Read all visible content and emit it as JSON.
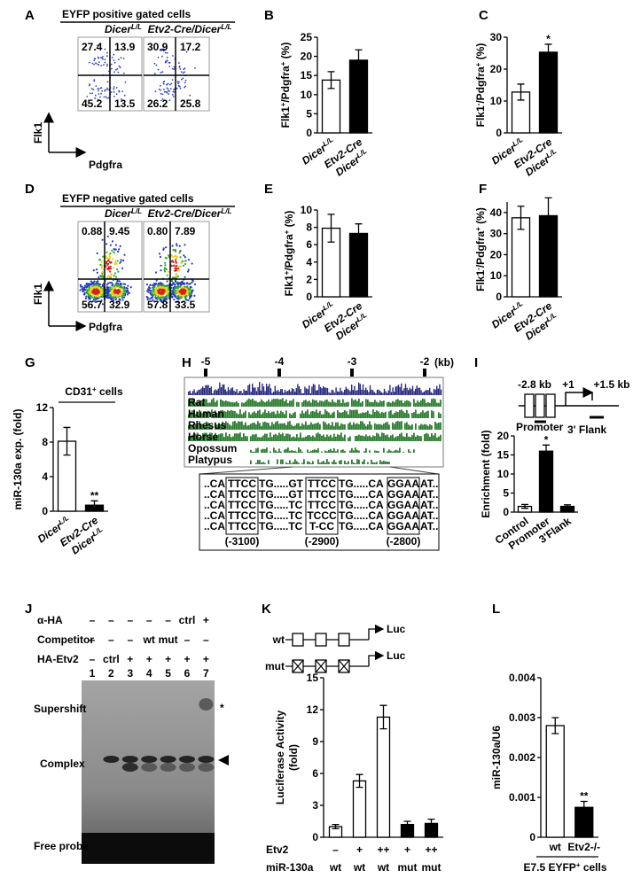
{
  "panel_a": {
    "label": "A",
    "title": "EYFP positive gated cells",
    "columns": [
      [
        "Dicer",
        "L/L"
      ],
      [
        "Etv2-Cre/Dicer",
        "L/L"
      ]
    ],
    "quadrants": [
      [
        "27.4",
        "13.9",
        "45.2",
        "13.5"
      ],
      [
        "30.9",
        "17.2",
        "26.2",
        "25.8"
      ]
    ],
    "y_axis": "Flk1",
    "x_axis": "Pdgfra"
  },
  "panel_d": {
    "label": "D",
    "title": "EYFP negative gated cells",
    "columns": [
      [
        "Dicer",
        "L/L"
      ],
      [
        "Etv2-Cre/Dicer",
        "L/L"
      ]
    ],
    "quadrants": [
      [
        "0.88",
        "9.45",
        "56.7",
        "32.9"
      ],
      [
        "0.80",
        "7.89",
        "57.8",
        "33.5"
      ]
    ],
    "y_axis": "Flk1",
    "x_axis": "Pdgfra"
  },
  "panel_h": {
    "label": "H",
    "scale": [
      "-5",
      "-4",
      "-3",
      "-2"
    ],
    "unit": "(kb)",
    "tracks": [
      "Rat",
      "Human",
      "Rhesus",
      "Horse",
      "Opossum",
      "Platypus"
    ],
    "sequences": [
      [
        "..CA",
        "TTCC",
        "TG.....GT",
        "TTCC",
        "TG.....CA",
        "GGAA",
        "AT.."
      ],
      [
        "..CA",
        "TTCC",
        "TG.....GT",
        "TTCC",
        "TG.....CA",
        "GGAA",
        "AT.."
      ],
      [
        "..CA",
        "TTCC",
        "TG.....TC",
        "TTCC",
        "TG.....CA",
        "GGAA",
        "AT.."
      ],
      [
        "..CA",
        "TTCC",
        "TG.....TC",
        "TCCC",
        "TG.....CA",
        "GGAA",
        "AT.."
      ],
      [
        "..CA",
        "TTCC",
        "TG.....TC",
        "T-CC",
        "TG.....CA",
        "GGAA",
        "AT.."
      ]
    ],
    "positions": [
      "(-3100)",
      "(-2900)",
      "(-2800)"
    ]
  },
  "panel_i": {
    "label": "I",
    "map_labels": [
      "-2.8 kb",
      "+1",
      "+1.5 kb"
    ],
    "regions": [
      "Promoter",
      "3' Flank"
    ]
  },
  "panel_j": {
    "label": "J",
    "rows": [
      {
        "name": "α-HA",
        "cells": [
          "–",
          "–",
          "–",
          "–",
          "–",
          "ctrl",
          "+"
        ]
      },
      {
        "name": "Competitor",
        "cells": [
          "–",
          "–",
          "–",
          "wt",
          "mut",
          "–",
          "–"
        ]
      },
      {
        "name": "HA-Etv2",
        "cells": [
          "–",
          "ctrl",
          "+",
          "+",
          "+",
          "+",
          "+"
        ]
      }
    ],
    "lanes": [
      "1",
      "2",
      "3",
      "4",
      "5",
      "6",
      "7"
    ],
    "bands": [
      "Supershift",
      "Complex",
      "Free probe"
    ],
    "supershift_mark": "*"
  },
  "panel_k": {
    "label": "K",
    "constructs": [
      "wt",
      "mut"
    ],
    "reporter": "Luc"
  },
  "chart_data": [
    {
      "type": "bar",
      "panel": "B",
      "ylabel": [
        [
          "Flk1",
          "+",
          "/Pdgfra",
          "+",
          " (%)"
        ]
      ],
      "categories": [
        [
          [
            "Dicer",
            "L/L"
          ]
        ],
        [
          [
            "Etv2-Cre"
          ],
          [
            "Dicer",
            "L/L"
          ]
        ]
      ],
      "values": [
        13.8,
        19
      ],
      "errors": [
        2.2,
        2.7
      ],
      "colors": [
        "#ffffff",
        "#000000"
      ],
      "ylim": [
        0,
        25
      ],
      "yticks": [
        0,
        5,
        10,
        15,
        20,
        25
      ],
      "rotated_labels": true,
      "italic_labels": true
    },
    {
      "type": "bar",
      "panel": "C",
      "ylabel": [
        [
          "Flk1",
          "-",
          "/Pdgfra",
          "+",
          " (%)"
        ]
      ],
      "categories": [
        [
          [
            "Dicer",
            "L/L"
          ]
        ],
        [
          [
            "Etv2-Cre"
          ],
          [
            "Dicer",
            "L/L"
          ]
        ]
      ],
      "values": [
        12.8,
        25.3
      ],
      "errors": [
        2.5,
        2.5
      ],
      "colors": [
        "#ffffff",
        "#000000"
      ],
      "ylim": [
        0,
        30
      ],
      "yticks": [
        0,
        10,
        20,
        30
      ],
      "significance": [
        null,
        "*"
      ],
      "rotated_labels": true,
      "italic_labels": true
    },
    {
      "type": "bar",
      "panel": "E",
      "ylabel": [
        [
          "Flk1",
          "+",
          "/Pdgfra",
          "+",
          " (%)"
        ]
      ],
      "categories": [
        [
          [
            "Dicer",
            "L/L"
          ]
        ],
        [
          [
            "Etv2-Cre"
          ],
          [
            "Dicer",
            "L/L"
          ]
        ]
      ],
      "values": [
        7.9,
        7.3
      ],
      "errors": [
        1.6,
        1.1
      ],
      "colors": [
        "#ffffff",
        "#000000"
      ],
      "ylim": [
        0,
        10
      ],
      "yticks": [
        0,
        2,
        4,
        6,
        8,
        10
      ],
      "rotated_labels": true,
      "italic_labels": true
    },
    {
      "type": "bar",
      "panel": "F",
      "ylabel": [
        [
          "Flk1",
          "-",
          "/Pdgfra",
          "+",
          " (%)"
        ]
      ],
      "categories": [
        [
          [
            "Dicer",
            "L/L"
          ]
        ],
        [
          [
            "Etv2-Cre"
          ],
          [
            "Dicer",
            "L/L"
          ]
        ]
      ],
      "values": [
        37.5,
        38.5
      ],
      "errors": [
        5.5,
        8.5
      ],
      "colors": [
        "#ffffff",
        "#000000"
      ],
      "ylim": [
        0,
        45
      ],
      "yticks": [
        0,
        10,
        20,
        30,
        40
      ],
      "rotated_labels": true,
      "italic_labels": true
    },
    {
      "type": "bar",
      "panel": "G",
      "subtitle": [
        "CD31",
        "+",
        " cells"
      ],
      "ylabel": [
        [
          "miR-130a exp. (fold)"
        ]
      ],
      "categories": [
        [
          [
            "Dicer",
            "L/L"
          ]
        ],
        [
          [
            "Etv2-Cre"
          ],
          [
            "Dicer",
            "L/L"
          ]
        ]
      ],
      "values": [
        8.1,
        0.7
      ],
      "errors": [
        1.6,
        0.5
      ],
      "colors": [
        "#ffffff",
        "#000000"
      ],
      "ylim": [
        0,
        12
      ],
      "yticks": [
        0,
        4,
        8,
        12
      ],
      "significance": [
        null,
        "**"
      ],
      "rotated_labels": true,
      "italic_labels": true
    },
    {
      "type": "bar",
      "ylabel": [
        [
          "Enrichment (fold)"
        ]
      ],
      "categories": [
        [
          [
            "Control"
          ]
        ],
        [
          [
            "Promoter"
          ]
        ],
        [
          [
            "3'Flank"
          ]
        ]
      ],
      "values": [
        1.5,
        16,
        1.5
      ],
      "errors": [
        0.5,
        1.6,
        0.4
      ],
      "colors": [
        "#ffffff",
        "#000000",
        "#000000"
      ],
      "ylim": [
        0,
        20
      ],
      "yticks": [
        0,
        5,
        10,
        15,
        20
      ],
      "significance": [
        null,
        "*",
        null
      ],
      "rotated_labels": true
    },
    {
      "type": "bar",
      "ylabel": [
        [
          "Luciferase Activity"
        ],
        [
          "(fold)"
        ]
      ],
      "values": [
        1.0,
        5.3,
        11.3,
        1.2,
        1.3
      ],
      "errors": [
        0.2,
        0.6,
        1.1,
        0.3,
        0.4
      ],
      "colors": [
        "#ffffff",
        "#ffffff",
        "#ffffff",
        "#000000",
        "#000000"
      ],
      "ylim": [
        0,
        15
      ],
      "yticks": [
        0,
        3,
        6,
        9,
        12,
        15
      ],
      "rows": [
        {
          "name": "Etv2",
          "cells": [
            "–",
            "+",
            "++",
            "+",
            "++"
          ]
        },
        {
          "name": "miR-130a",
          "cells": [
            "wt",
            "wt",
            "wt",
            "mut",
            "mut"
          ]
        }
      ]
    },
    {
      "type": "bar",
      "panel": "L",
      "ylabel": [
        [
          "miR-130a/U6"
        ]
      ],
      "categories": [
        [
          [
            "wt"
          ]
        ],
        [
          [
            "Etv2-/-"
          ]
        ]
      ],
      "values": [
        0.0028,
        0.00075
      ],
      "errors": [
        0.0002,
        0.00015
      ],
      "colors": [
        "#ffffff",
        "#000000"
      ],
      "ylim": [
        0,
        0.004
      ],
      "yticks": [
        0,
        0.001,
        0.002,
        0.003,
        0.004
      ],
      "significance": [
        null,
        "**"
      ],
      "xlabel": [
        "E7.5 EYFP",
        "+",
        " cells"
      ]
    }
  ]
}
